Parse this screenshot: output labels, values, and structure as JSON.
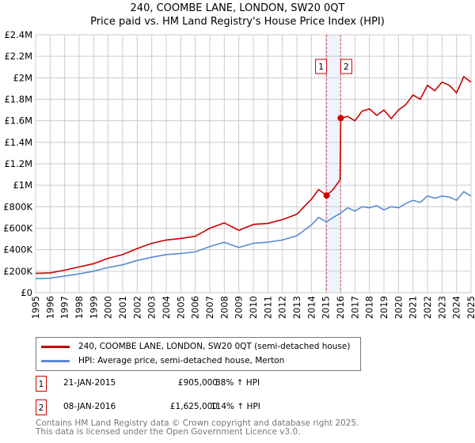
{
  "title": "240, COOMBE LANE, LONDON, SW20 0QT",
  "subtitle": "Price paid vs. HM Land Registry's House Price Index (HPI)",
  "chart_data": {
    "type": "line",
    "ylim": [
      0,
      2400000
    ],
    "xlim": [
      1995,
      2025
    ],
    "y_ticks": [
      {
        "v": 0,
        "label": "£0"
      },
      {
        "v": 200000,
        "label": "£200K"
      },
      {
        "v": 400000,
        "label": "£400K"
      },
      {
        "v": 600000,
        "label": "£600K"
      },
      {
        "v": 800000,
        "label": "£800K"
      },
      {
        "v": 1000000,
        "label": "£1M"
      },
      {
        "v": 1200000,
        "label": "£1.2M"
      },
      {
        "v": 1400000,
        "label": "£1.4M"
      },
      {
        "v": 1600000,
        "label": "£1.6M"
      },
      {
        "v": 1800000,
        "label": "£1.8M"
      },
      {
        "v": 2000000,
        "label": "£2M"
      },
      {
        "v": 2200000,
        "label": "£2.2M"
      },
      {
        "v": 2400000,
        "label": "£2.4M"
      }
    ],
    "x_ticks": [
      "1995",
      "1996",
      "1997",
      "1998",
      "1999",
      "2000",
      "2001",
      "2002",
      "2003",
      "2004",
      "2005",
      "2006",
      "2007",
      "2008",
      "2009",
      "2010",
      "2011",
      "2012",
      "2013",
      "2014",
      "2015",
      "2016",
      "2017",
      "2018",
      "2019",
      "2020",
      "2021",
      "2022",
      "2023",
      "2024",
      "2025"
    ],
    "grid": true,
    "series": [
      {
        "name": "240, COOMBE LANE, LONDON, SW20 0QT (semi-detached house)",
        "color": "#cc0000",
        "x": [
          1995,
          1996,
          1997,
          1998,
          1999,
          2000,
          2001,
          2002,
          2003,
          2004,
          2005,
          2006,
          2007,
          2008,
          2009,
          2010,
          2011,
          2012,
          2013,
          2014,
          2014.5,
          2015.05,
          2015.5,
          2015.97,
          2016.02,
          2016.5,
          2017,
          2017.5,
          2018,
          2018.5,
          2019,
          2019.5,
          2020,
          2020.5,
          2021,
          2021.5,
          2022,
          2022.5,
          2023,
          2023.5,
          2024,
          2024.5,
          2025
        ],
        "y": [
          180000,
          185000,
          210000,
          240000,
          270000,
          320000,
          355000,
          410000,
          460000,
          490000,
          505000,
          525000,
          600000,
          650000,
          580000,
          635000,
          645000,
          680000,
          730000,
          870000,
          960000,
          905000,
          960000,
          1050000,
          1625000,
          1640000,
          1600000,
          1690000,
          1710000,
          1650000,
          1700000,
          1620000,
          1700000,
          1750000,
          1840000,
          1800000,
          1930000,
          1880000,
          1960000,
          1930000,
          1860000,
          2010000,
          1960000
        ]
      },
      {
        "name": "HPI: Average price, semi-detached house, Merton",
        "color": "#5b8bd0",
        "x": [
          1995,
          1996,
          1997,
          1998,
          1999,
          2000,
          2001,
          2002,
          2003,
          2004,
          2005,
          2006,
          2007,
          2008,
          2009,
          2010,
          2011,
          2012,
          2013,
          2014,
          2014.5,
          2015.05,
          2015.5,
          2016,
          2016.5,
          2017,
          2017.5,
          2018,
          2018.5,
          2019,
          2019.5,
          2020,
          2020.5,
          2021,
          2021.5,
          2022,
          2022.5,
          2023,
          2023.5,
          2024,
          2024.5,
          2025
        ],
        "y": [
          130000,
          135000,
          155000,
          175000,
          200000,
          235000,
          260000,
          300000,
          330000,
          355000,
          365000,
          380000,
          430000,
          470000,
          420000,
          460000,
          470000,
          490000,
          530000,
          630000,
          700000,
          660000,
          700000,
          740000,
          790000,
          760000,
          800000,
          790000,
          810000,
          770000,
          800000,
          790000,
          830000,
          860000,
          840000,
          900000,
          880000,
          900000,
          890000,
          860000,
          940000,
          900000
        ]
      }
    ],
    "sales": [
      {
        "id": "1",
        "x": 2015.05,
        "y": 905000
      },
      {
        "id": "2",
        "x": 2016.02,
        "y": 1625000
      }
    ]
  },
  "legend": {
    "items": [
      {
        "label": "240, COOMBE LANE, LONDON, SW20 0QT (semi-detached house)",
        "color": "#cc0000"
      },
      {
        "label": "HPI: Average price, semi-detached house, Merton",
        "color": "#5b8bd0"
      }
    ]
  },
  "transactions": [
    {
      "id": "1",
      "date": "21-JAN-2015",
      "price": "£905,000",
      "hpi": "38% ↑ HPI"
    },
    {
      "id": "2",
      "date": "08-JAN-2016",
      "price": "£1,625,000",
      "hpi": "114% ↑ HPI"
    }
  ],
  "footer": {
    "line1": "Contains HM Land Registry data © Crown copyright and database right 2025.",
    "line2": "This data is licensed under the Open Government Licence v3.0."
  }
}
